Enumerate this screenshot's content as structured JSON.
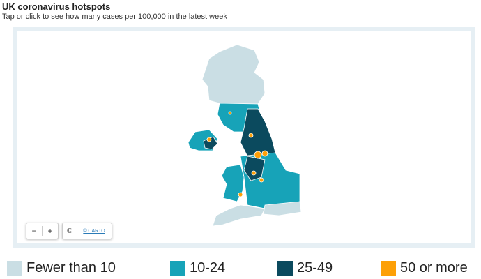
{
  "header": {
    "title": "UK coronavirus hotspots",
    "subtitle": "Tap or click to see how many cases per 100,000 in the latest week"
  },
  "map": {
    "controls": {
      "zoom_out": "−",
      "zoom_in": "+",
      "attribution_icon": "©",
      "attribution": "© CARTO"
    }
  },
  "legend": [
    {
      "label": "Fewer than 10",
      "color": "#cadee4"
    },
    {
      "label": "10-24",
      "color": "#17a3b8"
    },
    {
      "label": "25-49",
      "color": "#0b4a5e"
    },
    {
      "label": "50 or more",
      "color": "#fda007"
    }
  ]
}
